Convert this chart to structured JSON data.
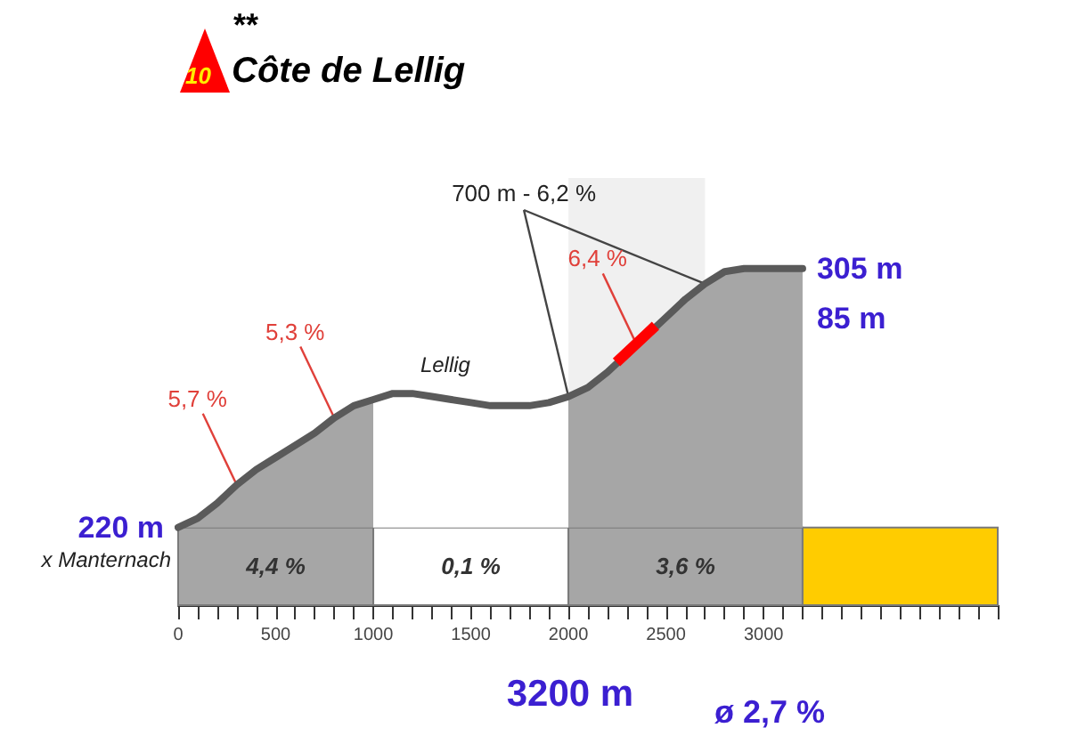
{
  "chart_data": {
    "type": "area",
    "title": "Côte de Lellig",
    "subtitle": "**",
    "x": [
      0,
      100,
      200,
      300,
      400,
      500,
      600,
      700,
      800,
      900,
      1000,
      1100,
      1200,
      1300,
      1400,
      1500,
      1600,
      1700,
      1800,
      1900,
      2000,
      2100,
      2200,
      2300,
      2400,
      2500,
      2600,
      2700,
      2800,
      2900,
      3000,
      3100,
      3200
    ],
    "series": [
      {
        "color": "#5a5a5a",
        "values": [
          220,
          223,
          228,
          234,
          239,
          243,
          247,
          251,
          256,
          260,
          262,
          264,
          264,
          263,
          262,
          261,
          260,
          260,
          260,
          261,
          263,
          266,
          271,
          277,
          283,
          289,
          295,
          300,
          304,
          305,
          305,
          305,
          305
        ],
        "value_labels": [
          "220 m",
          null,
          null,
          null,
          null,
          null,
          null,
          null,
          null,
          null,
          null,
          null,
          null,
          null,
          null,
          null,
          null,
          null,
          null,
          null,
          null,
          null,
          null,
          null,
          null,
          null,
          null,
          null,
          null,
          null,
          null,
          null,
          "305 m"
        ]
      }
    ],
    "xlim": [
      0,
      4200
    ],
    "xticks": [
      0,
      500,
      1000,
      1500,
      2000,
      2500,
      3000
    ],
    "bands": [
      {
        "axis": "x",
        "from": 0,
        "to": 1000,
        "label": "4,4 %",
        "color": "#a6a6a6"
      },
      {
        "axis": "x",
        "from": 1000,
        "to": 2000,
        "label": "0,1 %",
        "color": "#ffffff"
      },
      {
        "axis": "x",
        "from": 2000,
        "to": 3200,
        "label": "3,6 %",
        "color": "#a6a6a6"
      },
      {
        "axis": "x",
        "from": 3200,
        "to": 4200,
        "color": "#ffcc00"
      },
      {
        "axis": "x",
        "from": 2000,
        "to": 2700,
        "label": "700 m - 6,2 %",
        "color": "#f0f0f0"
      }
    ],
    "annotations": [
      "10",
      {
        "text": "5,7 %",
        "x": 300,
        "y": 234
      },
      {
        "text": "5,3 %",
        "x": 800,
        "y": 256
      },
      {
        "text": "6,4 %",
        "x": 2350,
        "y": 280
      },
      {
        "text": "Lellig",
        "x": 1150,
        "y": 264
      },
      {
        "text": "x Manternach",
        "x": 0,
        "y": 220
      },
      "85 m",
      "3200 m",
      "ø 2,7 %"
    ],
    "tick_labels": "x",
    "grid": false
  }
}
